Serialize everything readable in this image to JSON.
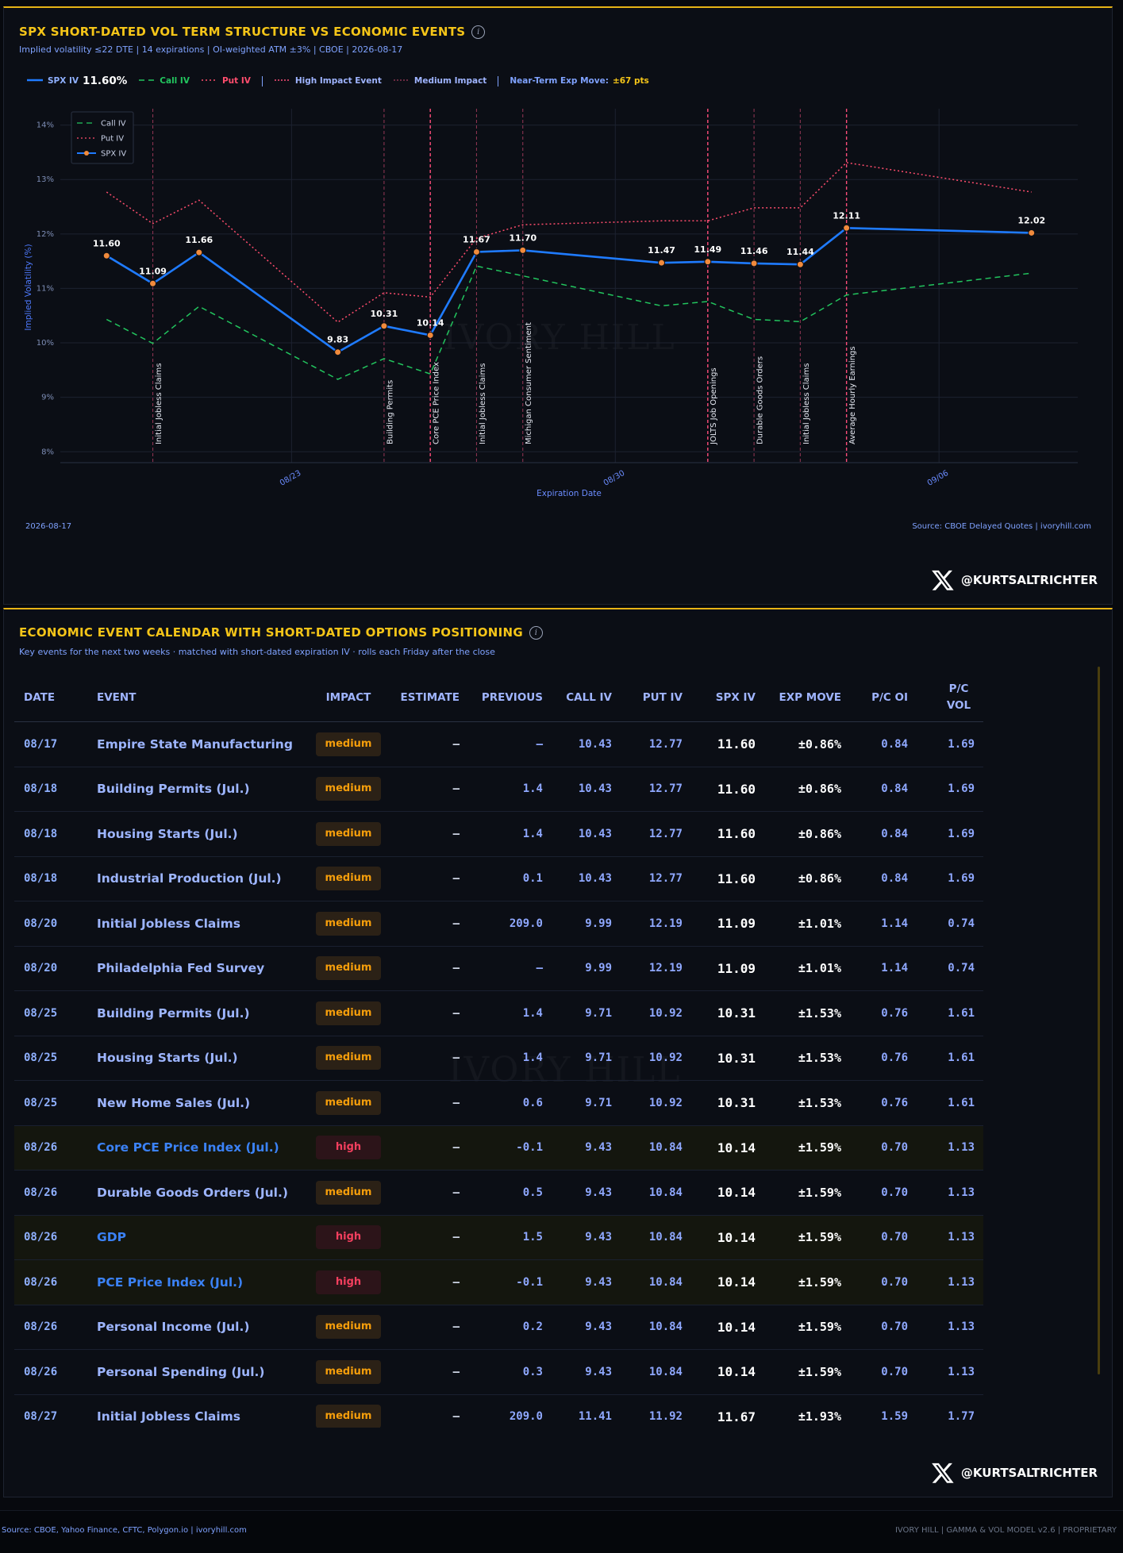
{
  "chart_data": {
    "type": "line",
    "title": "SPX SHORT-DATED VOL TERM STRUCTURE VS ECONOMIC EVENTS",
    "subtitle": "Implied volatility ≤22 DTE | 14 expirations | OI-weighted ATM ±3% | CBOE | 2026-08-17",
    "header_legend": {
      "current_iv": "11.60%",
      "high": "High Impact Event",
      "medium": "Medium Impact",
      "exp_move_label": "Near-Term Exp Move:",
      "exp_move": "±67 pts"
    },
    "x": [
      "08/19",
      "08/20",
      "08/21",
      "08/24",
      "08/25",
      "08/26",
      "08/27",
      "08/28",
      "08/31",
      "09/01",
      "09/02",
      "09/03",
      "09/04",
      "09/08"
    ],
    "series": [
      {
        "name": "SPX IV",
        "color": "#1f7bff",
        "style": "solid",
        "markers": true,
        "values": [
          11.6,
          11.09,
          11.66,
          9.83,
          10.31,
          10.14,
          11.67,
          11.7,
          11.47,
          11.49,
          11.46,
          11.44,
          12.11,
          12.02
        ],
        "value_labels": [
          "11.60",
          "11.09",
          "11.66",
          "9.83",
          "10.31",
          "10.14",
          "11.67",
          "11.70",
          "11.47",
          "11.49",
          "11.46",
          "11.44",
          "12.11",
          "12.02"
        ]
      },
      {
        "name": "Call IV",
        "color": "#22c55e",
        "style": "dashed",
        "values": [
          10.43,
          9.99,
          10.67,
          9.33,
          9.71,
          9.43,
          11.41,
          11.23,
          10.68,
          10.76,
          10.43,
          10.39,
          10.88,
          11.28
        ]
      },
      {
        "name": "Put IV",
        "color": "#ff4d6d",
        "style": "dotted",
        "values": [
          12.77,
          12.19,
          12.62,
          10.38,
          10.92,
          10.84,
          11.92,
          12.17,
          12.24,
          12.24,
          12.48,
          12.48,
          13.31,
          12.77
        ]
      }
    ],
    "events": [
      {
        "date": "08/20",
        "label": "Initial Jobless Claims",
        "impact": "medium"
      },
      {
        "date": "08/25",
        "label": "Building Permits",
        "impact": "medium"
      },
      {
        "date": "08/26",
        "label": "Core PCE Price Index",
        "impact": "high"
      },
      {
        "date": "08/27",
        "label": "Initial Jobless Claims",
        "impact": "medium"
      },
      {
        "date": "08/28",
        "label": "Michigan Consumer Sentiment",
        "impact": "medium"
      },
      {
        "date": "09/01",
        "label": "JOLTS Job Openings",
        "impact": "high"
      },
      {
        "date": "09/02",
        "label": "Durable Goods Orders",
        "impact": "medium"
      },
      {
        "date": "09/03",
        "label": "Initial Jobless Claims",
        "impact": "medium"
      },
      {
        "date": "09/04",
        "label": "Average Hourly Earnings",
        "impact": "high"
      }
    ],
    "event_colors": {
      "high": "#ff4d7a",
      "medium": "#8a3350"
    },
    "xlim": [
      "08/18",
      "09/09"
    ],
    "xticks": [
      "08/23",
      "08/30",
      "09/06"
    ],
    "ylim": [
      7.8,
      14.3
    ],
    "yticks": [
      {
        "value": 8,
        "label": "8%"
      },
      {
        "value": 9,
        "label": "9%"
      },
      {
        "value": 10,
        "label": "10%"
      },
      {
        "value": 11,
        "label": "11%"
      },
      {
        "value": 12,
        "label": "12%"
      },
      {
        "value": 13,
        "label": "13%"
      },
      {
        "value": 14,
        "label": "14%"
      }
    ],
    "y_label": "Implied Volatility (%)",
    "x_label": "Expiration Date",
    "grid": true,
    "legend": "upper left",
    "date": "2026-08-17",
    "source": "Source: CBOE Delayed Quotes | ivoryhill.com"
  },
  "info_icon": "i",
  "watermark": "IVORY HILL",
  "handle": "@KURTSALTRICHTER",
  "calendar": {
    "title": "ECONOMIC EVENT CALENDAR WITH SHORT-DATED OPTIONS POSITIONING",
    "subtitle": "Key events for the next two weeks · matched with short-dated expiration IV · rolls each Friday after the close",
    "columns": [
      "DATE",
      "EVENT",
      "IMPACT",
      "ESTIMATE",
      "PREVIOUS",
      "CALL IV",
      "PUT IV",
      "SPX IV",
      "EXP MOVE",
      "P/C OI",
      "P/C VOL"
    ],
    "rows": [
      [
        "08/17",
        "Empire State Manufacturing",
        "medium",
        "–",
        "–",
        "10.43",
        "12.77",
        "11.60",
        "±0.86%",
        "0.84",
        "1.69"
      ],
      [
        "08/18",
        "Building Permits (Jul.)",
        "medium",
        "–",
        "1.4",
        "10.43",
        "12.77",
        "11.60",
        "±0.86%",
        "0.84",
        "1.69"
      ],
      [
        "08/18",
        "Housing Starts (Jul.)",
        "medium",
        "–",
        "1.4",
        "10.43",
        "12.77",
        "11.60",
        "±0.86%",
        "0.84",
        "1.69"
      ],
      [
        "08/18",
        "Industrial Production (Jul.)",
        "medium",
        "–",
        "0.1",
        "10.43",
        "12.77",
        "11.60",
        "±0.86%",
        "0.84",
        "1.69"
      ],
      [
        "08/20",
        "Initial Jobless Claims",
        "medium",
        "–",
        "209.0",
        "9.99",
        "12.19",
        "11.09",
        "±1.01%",
        "1.14",
        "0.74"
      ],
      [
        "08/20",
        "Philadelphia Fed Survey",
        "medium",
        "–",
        "–",
        "9.99",
        "12.19",
        "11.09",
        "±1.01%",
        "1.14",
        "0.74"
      ],
      [
        "08/25",
        "Building Permits (Jul.)",
        "medium",
        "–",
        "1.4",
        "9.71",
        "10.92",
        "10.31",
        "±1.53%",
        "0.76",
        "1.61"
      ],
      [
        "08/25",
        "Housing Starts (Jul.)",
        "medium",
        "–",
        "1.4",
        "9.71",
        "10.92",
        "10.31",
        "±1.53%",
        "0.76",
        "1.61"
      ],
      [
        "08/25",
        "New Home Sales (Jul.)",
        "medium",
        "–",
        "0.6",
        "9.71",
        "10.92",
        "10.31",
        "±1.53%",
        "0.76",
        "1.61"
      ],
      [
        "08/26",
        "Core PCE Price Index (Jul.)",
        "high",
        "–",
        "-0.1",
        "9.43",
        "10.84",
        "10.14",
        "±1.59%",
        "0.70",
        "1.13"
      ],
      [
        "08/26",
        "Durable Goods Orders (Jul.)",
        "medium",
        "–",
        "0.5",
        "9.43",
        "10.84",
        "10.14",
        "±1.59%",
        "0.70",
        "1.13"
      ],
      [
        "08/26",
        "GDP",
        "high",
        "–",
        "1.5",
        "9.43",
        "10.84",
        "10.14",
        "±1.59%",
        "0.70",
        "1.13"
      ],
      [
        "08/26",
        "PCE Price Index (Jul.)",
        "high",
        "–",
        "-0.1",
        "9.43",
        "10.84",
        "10.14",
        "±1.59%",
        "0.70",
        "1.13"
      ],
      [
        "08/26",
        "Personal Income (Jul.)",
        "medium",
        "–",
        "0.2",
        "9.43",
        "10.84",
        "10.14",
        "±1.59%",
        "0.70",
        "1.13"
      ],
      [
        "08/26",
        "Personal Spending (Jul.)",
        "medium",
        "–",
        "0.3",
        "9.43",
        "10.84",
        "10.14",
        "±1.59%",
        "0.70",
        "1.13"
      ],
      [
        "08/27",
        "Initial Jobless Claims",
        "medium",
        "–",
        "209.0",
        "11.41",
        "11.92",
        "11.67",
        "±1.93%",
        "1.59",
        "1.77"
      ]
    ]
  },
  "footer": {
    "source": "Source: CBOE, Yahoo Finance, CFTC, Polygon.io | ivoryhill.com",
    "brand": "IVORY HILL | GAMMA & VOL MODEL v2.6 | PROPRIETARY"
  }
}
